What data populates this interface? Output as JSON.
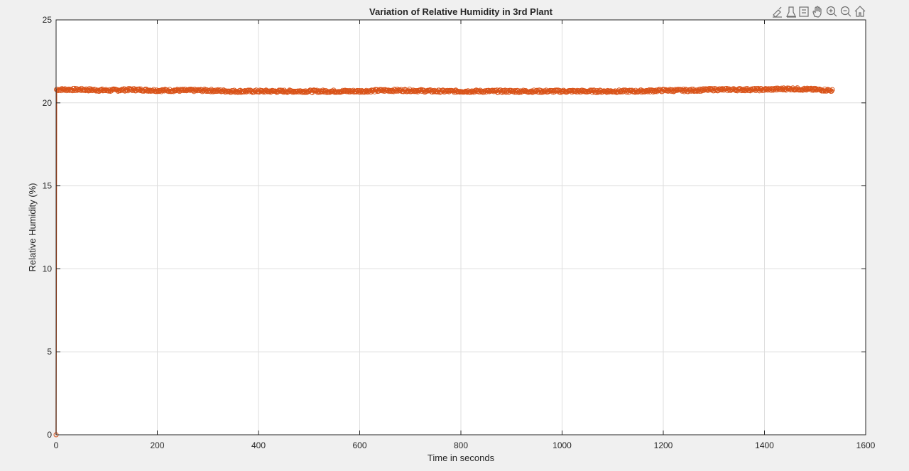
{
  "toolbar": {
    "icons": [
      "brush-icon",
      "export-icon",
      "data-tips-icon",
      "pan-icon",
      "zoom-in-icon",
      "zoom-out-icon",
      "home-icon"
    ]
  },
  "chart_data": {
    "type": "line",
    "title": "Variation of Relative Humidity in 3rd Plant",
    "xlabel": "Time in seconds",
    "ylabel": "Relative Humidity (%)",
    "xlim": [
      0,
      1600
    ],
    "ylim": [
      0,
      25
    ],
    "xticks": [
      0,
      200,
      400,
      600,
      800,
      1000,
      1200,
      1400,
      1600
    ],
    "yticks": [
      0,
      5,
      10,
      15,
      20,
      25
    ],
    "grid": true,
    "marker": "circle",
    "color": "#d95319",
    "series": [
      {
        "name": "",
        "x": [
          0,
          1,
          10,
          50,
          100,
          150,
          200,
          250,
          300,
          350,
          400,
          450,
          500,
          550,
          600,
          650,
          700,
          750,
          800,
          850,
          900,
          950,
          1000,
          1050,
          1100,
          1150,
          1200,
          1250,
          1300,
          1350,
          1400,
          1450,
          1500,
          1535
        ],
        "y": [
          0,
          20.8,
          20.8,
          20.8,
          20.75,
          20.8,
          20.75,
          20.75,
          20.75,
          20.7,
          20.7,
          20.7,
          20.7,
          20.7,
          20.7,
          20.75,
          20.75,
          20.7,
          20.7,
          20.7,
          20.7,
          20.7,
          20.7,
          20.7,
          20.7,
          20.7,
          20.75,
          20.75,
          20.8,
          20.8,
          20.8,
          20.85,
          20.8,
          20.75
        ]
      }
    ]
  }
}
